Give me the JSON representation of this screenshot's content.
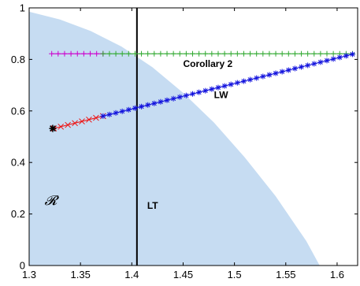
{
  "chart_data": {
    "type": "scatter",
    "title": "",
    "xlabel": "",
    "ylabel": "",
    "xlim": [
      1.3,
      1.62
    ],
    "ylim": [
      0,
      1
    ],
    "grid": false,
    "legend": "none",
    "x_ticks": [
      "1.3",
      "1.35",
      "1.4",
      "1.45",
      "1.5",
      "1.55",
      "1.6"
    ],
    "y_ticks": [
      "0",
      "0.2",
      "0.4",
      "0.6",
      "0.8",
      "1"
    ],
    "region": {
      "label": "𝓡",
      "color": "#c6dcf2",
      "boundary": [
        [
          1.3,
          0.985
        ],
        [
          1.33,
          0.955
        ],
        [
          1.36,
          0.91
        ],
        [
          1.39,
          0.85
        ],
        [
          1.42,
          0.77
        ],
        [
          1.45,
          0.67
        ],
        [
          1.48,
          0.555
        ],
        [
          1.51,
          0.42
        ],
        [
          1.54,
          0.27
        ],
        [
          1.57,
          0.095
        ],
        [
          1.583,
          0.0
        ]
      ]
    },
    "vertical_line": {
      "x": 1.405,
      "label": "LT",
      "color": "#000000"
    },
    "series": [
      {
        "marker": "plus",
        "color": "#cc00cc",
        "y": 0.822,
        "x_start": 1.322,
        "x_end": 1.372,
        "count": 9
      },
      {
        "marker": "plus",
        "color": "#33aa33",
        "y": 0.822,
        "x_start": 1.372,
        "x_end": 1.615,
        "count": 40
      },
      {
        "marker": "x",
        "color": "#ee1111",
        "start": [
          1.324,
          0.532
        ],
        "end": [
          1.372,
          0.58
        ],
        "count": 8
      },
      {
        "marker": "asterisk",
        "color": "#1111dd",
        "start": [
          1.372,
          0.58
        ],
        "end": [
          1.615,
          0.82
        ],
        "count": 40
      },
      {
        "marker": "asterisk",
        "color": "#000000",
        "points": [
          [
            1.323,
            0.532
          ]
        ]
      }
    ],
    "annotations": [
      {
        "text": "Corollary 2",
        "x": 1.45,
        "y": 0.77
      },
      {
        "text": "LW",
        "x": 1.48,
        "y": 0.65
      },
      {
        "text": "LT",
        "x": 1.415,
        "y": 0.22
      }
    ]
  }
}
